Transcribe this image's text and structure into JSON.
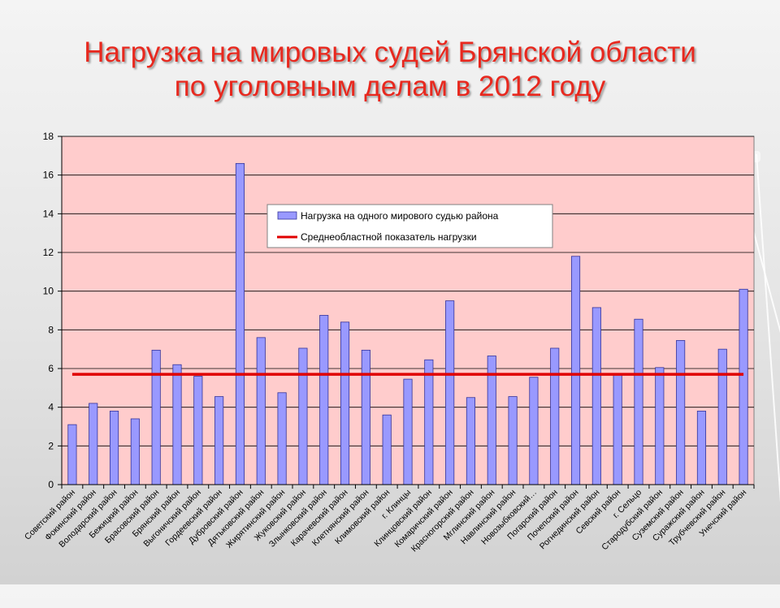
{
  "title": {
    "line1": "Нагрузка на мировых судей Брянской области",
    "line2": "по уголовным делам в 2012 году"
  },
  "colors": {
    "title": "#e8281e",
    "plot_background": "#ffcccc",
    "bar_fill": "#9999ff",
    "bar_stroke": "#333399",
    "average_line": "#e00000",
    "gridline": "#000000"
  },
  "chart_data": {
    "type": "bar",
    "title": "Нагрузка на мировых судей Брянской области по уголовным делам в 2012 году",
    "xlabel": "",
    "ylabel": "",
    "ylim": [
      0,
      18
    ],
    "yticks": [
      0,
      2,
      4,
      6,
      8,
      10,
      12,
      14,
      16,
      18
    ],
    "grid": true,
    "legend_placement": "upper-center",
    "categories": [
      "Советский район",
      "Фокинский район",
      "Володарский район",
      "Бежицкий район",
      "Брасовский район",
      "Брянский район",
      "Выгоничский район",
      "Гордеевский район",
      "Дубровский район",
      "Дятьковский район",
      "Жирятинский район",
      "Жуковский район",
      "Злынковский район",
      "Карачевский район",
      "Клетнянский район",
      "Климовский район",
      "г. Клинцы",
      "Клинцовский район",
      "Комаричский район",
      "Красногорский район",
      "Мглинский район",
      "Навлинский район",
      "Новозыбковский…",
      "Погарский район",
      "Почепский район",
      "Рогнединский район",
      "Севский район",
      "г. Сельцо",
      "Стародубский район",
      "Суземский район",
      "Суражский район",
      "Трубчевский район",
      "Унечский район"
    ],
    "series": [
      {
        "name": "Нагрузка на одного мирового судью района",
        "type": "bar",
        "values": [
          3.1,
          4.2,
          3.8,
          3.4,
          6.95,
          6.2,
          5.6,
          4.55,
          16.6,
          7.6,
          4.75,
          7.05,
          8.75,
          8.4,
          6.95,
          3.6,
          5.45,
          6.45,
          9.5,
          4.5,
          6.65,
          4.55,
          5.55,
          7.05,
          11.8,
          9.15,
          5.7,
          8.55,
          6.05,
          7.45,
          3.8,
          7.0,
          10.1
        ]
      },
      {
        "name": "Среднеобластной показатель нагрузки",
        "type": "line",
        "value": 5.7
      }
    ]
  }
}
